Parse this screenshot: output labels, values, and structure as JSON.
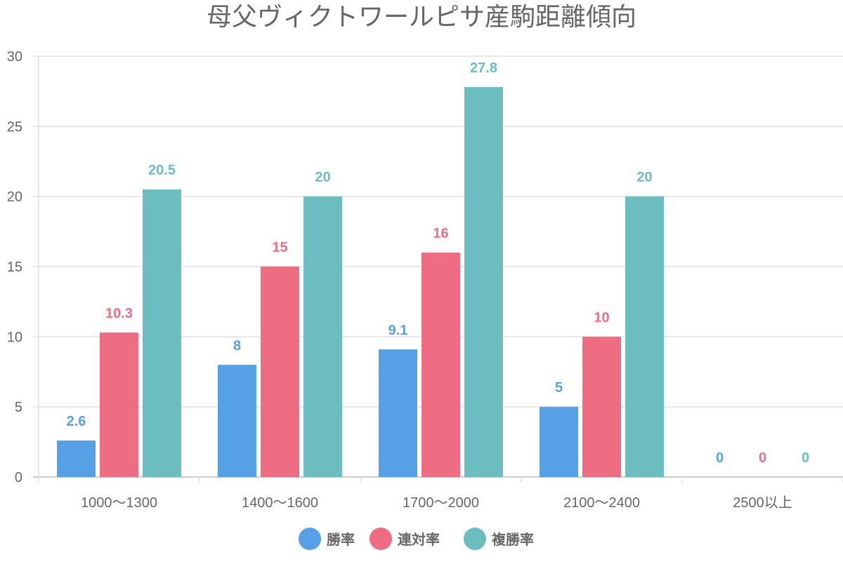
{
  "chart_data": {
    "type": "bar",
    "title": "母父ヴィクトワールピサ産駒距離傾向",
    "categories": [
      "1000〜1300",
      "1400〜1600",
      "1700〜2000",
      "2100〜2400",
      "2500以上"
    ],
    "series": [
      {
        "name": "勝率",
        "color": "#56A0E5",
        "values": [
          2.6,
          8,
          9.1,
          5,
          0
        ]
      },
      {
        "name": "連対率",
        "color": "#EE6D82",
        "values": [
          10.3,
          15,
          16,
          10,
          0
        ]
      },
      {
        "name": "複勝率",
        "color": "#6BBDC0",
        "values": [
          20.5,
          20,
          27.8,
          20,
          0
        ]
      }
    ],
    "ylim": [
      0,
      30
    ],
    "yticks": [
      0,
      5,
      10,
      15,
      20,
      25,
      30
    ],
    "xlabel": "",
    "ylabel": "",
    "grid": true,
    "legend": "bottom"
  }
}
